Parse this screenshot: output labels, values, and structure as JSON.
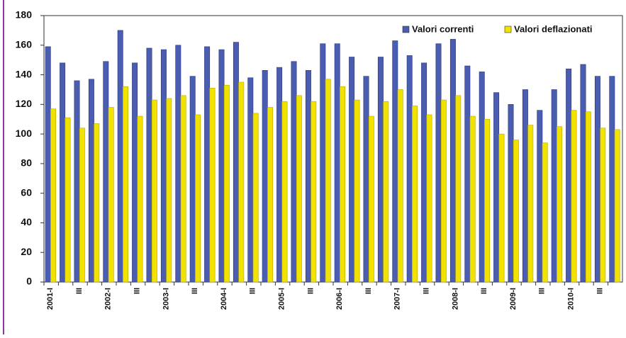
{
  "chart_data": {
    "type": "bar",
    "categories": [
      "2001-I",
      null,
      "III",
      null,
      "2002-I",
      null,
      "III",
      null,
      "2003-I",
      null,
      "III",
      null,
      "2004-I",
      null,
      "III",
      null,
      "2005-I",
      null,
      "III",
      null,
      "2006-I",
      null,
      "III",
      null,
      "2007-I",
      null,
      "III",
      null,
      "2008-I",
      null,
      "III",
      null,
      "2009-I",
      null,
      "III",
      null,
      "2010-I",
      null,
      "III",
      null
    ],
    "series": [
      {
        "name": "Valori correnti",
        "color": "#4a5db0",
        "values": [
          159,
          148,
          136,
          137,
          149,
          170,
          148,
          158,
          157,
          160,
          139,
          159,
          157,
          162,
          138,
          143,
          145,
          149,
          143,
          161,
          161,
          152,
          139,
          152,
          163,
          153,
          148,
          161,
          164,
          146,
          142,
          128,
          120,
          130,
          116,
          130,
          144,
          147,
          139,
          139
        ]
      },
      {
        "name": "Valori deflazionati",
        "color": "#f2e200",
        "values": [
          117,
          111,
          104,
          107,
          118,
          132,
          112,
          123,
          124,
          126,
          113,
          131,
          133,
          135,
          114,
          118,
          122,
          126,
          122,
          137,
          132,
          123,
          112,
          122,
          130,
          119,
          113,
          123,
          126,
          112,
          110,
          100,
          96,
          106,
          94,
          105,
          116,
          115,
          104,
          103
        ]
      }
    ],
    "ylim": [
      0,
      180
    ],
    "yticks": [
      0,
      20,
      40,
      60,
      80,
      100,
      120,
      140,
      160,
      180
    ],
    "legend": "top-right"
  }
}
